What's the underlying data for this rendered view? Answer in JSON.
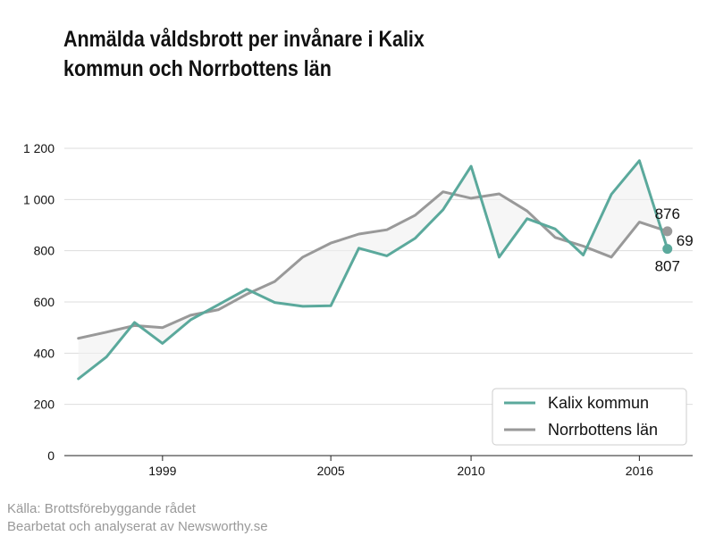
{
  "title": "Anmälda våldsbrott per invånare i Kalix kommun och Norrbottens län",
  "source": {
    "line1": "Källa: Brottsförebyggande rådet",
    "line2": "Bearbetat och analyserat av Newsworthy.se"
  },
  "chart_data": {
    "type": "line",
    "x": [
      1996,
      1997,
      1998,
      1999,
      2000,
      2001,
      2002,
      2003,
      2004,
      2005,
      2006,
      2007,
      2008,
      2009,
      2010,
      2011,
      2012,
      2013,
      2014,
      2015,
      2016,
      2017
    ],
    "series": [
      {
        "name": "Kalix kommun",
        "color": "#5ba99c",
        "values": [
          300,
          385,
          520,
          438,
          530,
          590,
          650,
          598,
          583,
          585,
          810,
          780,
          848,
          960,
          1130,
          775,
          925,
          885,
          783,
          1020,
          1152,
          807
        ]
      },
      {
        "name": "Norrbottens län",
        "color": "#999999",
        "values": [
          458,
          482,
          508,
          500,
          548,
          570,
          630,
          680,
          775,
          830,
          865,
          882,
          938,
          1030,
          1005,
          1022,
          955,
          852,
          818,
          775,
          912,
          876
        ]
      }
    ],
    "end_labels": {
      "kalix": "807",
      "norrbotten": "876",
      "difference": "69"
    },
    "xticks": [
      "1999",
      "2005",
      "2010",
      "2016"
    ],
    "xtick_values": [
      1999,
      2005,
      2010,
      2016
    ],
    "yticks": [
      "0",
      "200",
      "400",
      "600",
      "800",
      "1 000",
      "1 200"
    ],
    "ytick_values": [
      0,
      200,
      400,
      600,
      800,
      1000,
      1200
    ],
    "ylim": [
      0,
      1200
    ],
    "xlim": [
      1996,
      2017
    ],
    "grid": "horizontal",
    "legend": "bottom-right",
    "fill_between_color": "#f0f0f0"
  }
}
